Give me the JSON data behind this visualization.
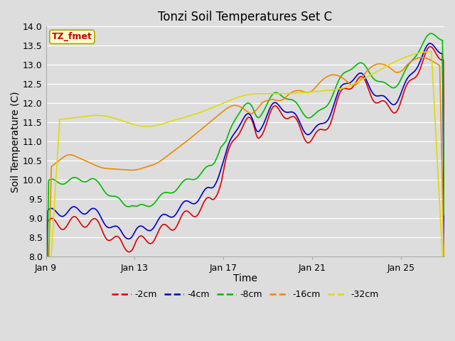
{
  "title": "Tonzi Soil Temperatures Set C",
  "xlabel": "Time",
  "ylabel": "Soil Temperature (C)",
  "ylim": [
    8.0,
    14.0
  ],
  "yticks": [
    8.0,
    8.5,
    9.0,
    9.5,
    10.0,
    10.5,
    11.0,
    11.5,
    12.0,
    12.5,
    13.0,
    13.5,
    14.0
  ],
  "xtick_labels": [
    "Jan 9",
    "Jan 13",
    "Jan 17",
    "Jan 21",
    "Jan 25"
  ],
  "xtick_positions": [
    0,
    96,
    192,
    288,
    384
  ],
  "series_colors": [
    "#dd0000",
    "#0000cc",
    "#00bb00",
    "#ee8800",
    "#dddd00"
  ],
  "series_labels": [
    "-2cm",
    "-4cm",
    "-8cm",
    "-16cm",
    "-32cm"
  ],
  "annotation_text": "TZ_fmet",
  "annotation_color": "#cc0000",
  "annotation_bg": "#ffffcc",
  "annotation_border": "#aaaa00",
  "plot_bg": "#dddddd",
  "fig_bg": "#dddddd",
  "n_points": 432,
  "title_fontsize": 12,
  "axis_label_fontsize": 10,
  "tick_fontsize": 9
}
